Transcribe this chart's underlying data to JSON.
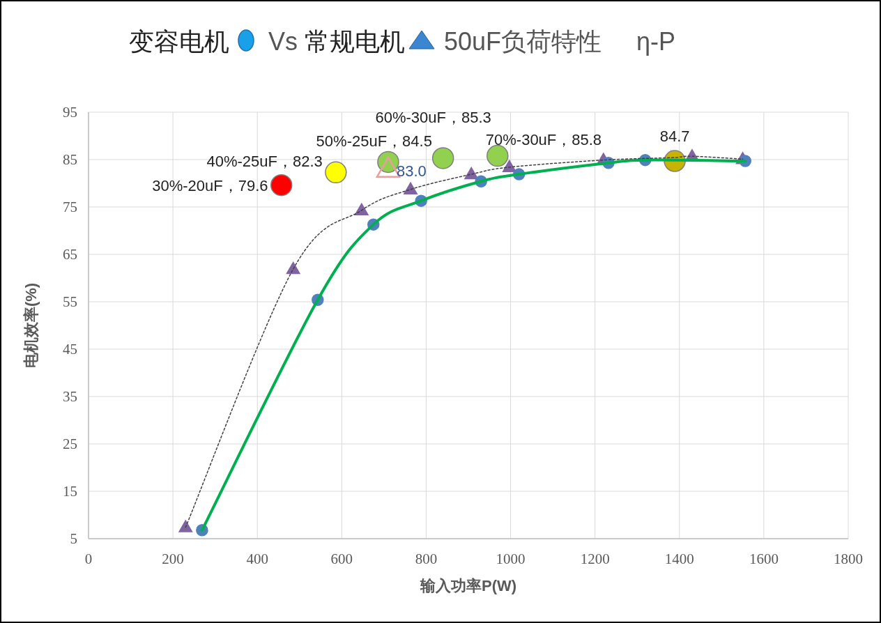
{
  "chart_data": {
    "type": "line",
    "title": "变容电机 Vs 常规电机 50uF负荷特性 η-P",
    "xlabel": "输入功率P(W)",
    "ylabel": "电机效率(%)",
    "xlim": [
      0,
      1800
    ],
    "xticks": [
      0,
      200,
      400,
      600,
      800,
      1000,
      1200,
      1400,
      1600,
      1800
    ],
    "ylim": [
      5,
      95
    ],
    "yticks": [
      5,
      15,
      25,
      35,
      45,
      55,
      65,
      75,
      85,
      95
    ],
    "grid": true,
    "series": [
      {
        "type": "line",
        "color": "#00b050",
        "line_style": "solid",
        "marker": "circle",
        "colors": [
          "#4f81bd",
          "#4f81bd",
          "#4f81bd",
          "#4f81bd",
          "#4f81bd",
          "#4f81bd",
          "#4f81bd",
          "#4f81bd",
          "#4f81bd"
        ],
        "x": [
          269,
          543,
          675,
          788,
          930,
          1020,
          1232,
          1319,
          1556
        ],
        "values": [
          6.8,
          55.4,
          71.3,
          76.3,
          80.4,
          81.9,
          84.3,
          84.9,
          84.7
        ]
      },
      {
        "type": "line",
        "color": "#404040",
        "line_style": "dotted",
        "marker": "triangle",
        "colors": [
          "#8064a2",
          "#8064a2",
          "#8064a2",
          "#8064a2",
          "#8064a2",
          "#8064a2",
          "#8064a2",
          "#8064a2",
          "#8064a2",
          "#8064a2"
        ],
        "x": [
          230,
          485,
          647,
          763,
          907,
          997,
          1220,
          1380,
          1430,
          1550
        ],
        "values": [
          7.4,
          61.9,
          74.3,
          78.7,
          81.9,
          83.4,
          84.9,
          85.4,
          85.7,
          85.1
        ]
      },
      {
        "type": "scatter",
        "marker": "circle",
        "colors": [
          "#ff0000",
          "#ffff00",
          "#92d050",
          "#92d050",
          "#92d050",
          "#c8b400"
        ],
        "x": [
          457,
          586,
          710,
          840,
          969,
          1389
        ],
        "values": [
          79.6,
          82.3,
          84.5,
          85.3,
          85.8,
          84.7
        ],
        "value_labels": [
          "30%-20uF，79.6",
          "40%-25uF，82.3",
          "50%-25uF，84.5",
          "60%-30uF，85.3",
          "70%-30uF，85.8",
          "84.7"
        ]
      },
      {
        "type": "scatter",
        "marker": "triangle",
        "color": "#e6a0a0",
        "x": [
          710
        ],
        "values": [
          83.0
        ],
        "value_labels": [
          "83.0"
        ]
      }
    ]
  }
}
